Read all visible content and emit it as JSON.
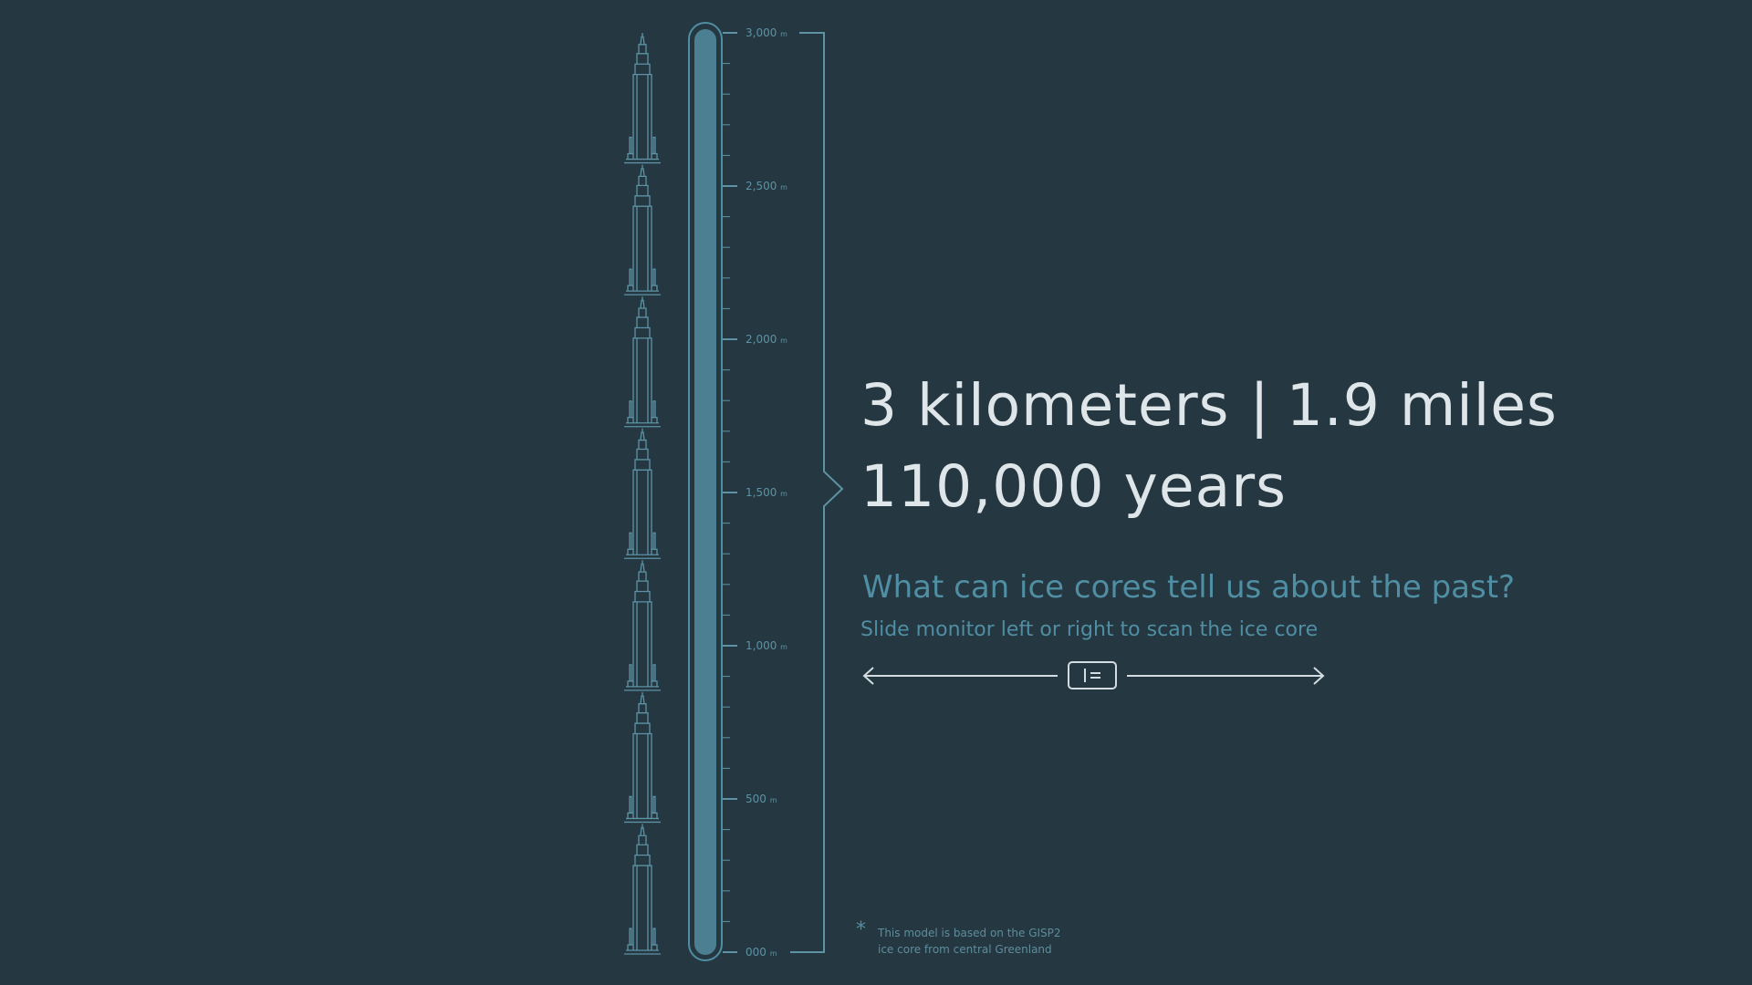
{
  "headline": {
    "depth_km": "3 kilometers",
    "separator": "|",
    "depth_miles": "1.9 miles",
    "age": "110,000 years"
  },
  "prompt": {
    "question": "What can ice cores tell us about the past?",
    "instruction": "Slide monitor left or right to scan the ice core"
  },
  "scale": {
    "unit": "m",
    "ticks": [
      {
        "depth": 3000,
        "label": "3,000"
      },
      {
        "depth": 2500,
        "label": "2,500"
      },
      {
        "depth": 2000,
        "label": "2,000"
      },
      {
        "depth": 1500,
        "label": "1,500"
      },
      {
        "depth": 1000,
        "label": "1,000"
      },
      {
        "depth": 500,
        "label": "500"
      },
      {
        "depth": 0,
        "label": "000"
      }
    ],
    "max_depth": 3000,
    "minor_step": 100
  },
  "buildings": {
    "count": 7,
    "icon": "skyscraper-icon"
  },
  "slider": {
    "icon": "monitor-handle-icon",
    "left_icon": "arrow-left-icon",
    "right_icon": "arrow-right-icon"
  },
  "footnote": {
    "marker": "*",
    "text_line1": "This model is based on the GISP2",
    "text_line2": "ice core from central Greenland"
  },
  "colors": {
    "background": "#253740",
    "core_fill": "#4d7f92",
    "outline": "#5d93a5",
    "headline": "#dfe6ea",
    "accent_text": "#4f8ea3"
  }
}
